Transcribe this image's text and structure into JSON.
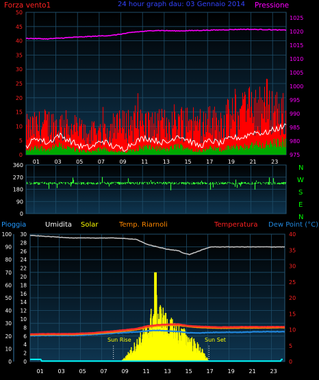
{
  "header": {
    "left_label": "Forza vento1",
    "center_title": "24 hour graph dau: 03 Gennaio 2014",
    "right_label": "Pressione"
  },
  "panel3_header": {
    "rain": "Pioggia",
    "humidity": "Umidita",
    "solar": "Solar",
    "temp_riarnoli": "Temp. Riarnoli",
    "temperature": "Temperatura",
    "dew_point": "Dew Point (°C)"
  },
  "annotations": {
    "sun_rise": "Sun Rise",
    "sun_set": "Sun Set",
    "direction_letters": [
      "N",
      "W",
      "S",
      "E",
      "N"
    ]
  },
  "colors": {
    "background": "#000000",
    "panel_fill_top": "#000000",
    "panel_fill_bottom": "#0e3550",
    "grid": "#1e4e6a",
    "wind": "#ff0000",
    "gust_avg": "#ffffff",
    "wind_green": "#00aa00",
    "pressure": "#ff00ff",
    "direction": "#33ff33",
    "direction_letters": "#00ff00",
    "humidity": "#c0c0c0",
    "solar": "#ffff00",
    "temperature": "#ff2a2a",
    "temp_riarnoli": "#ff8800",
    "dew_point": "#2288dd",
    "rain": "#00ffff",
    "left_axis_text": "#ffffff",
    "left_axis_text_top": "#ff2222",
    "right_axis_text_top": "#ff00ff",
    "right_axis_text_bottom": "#ff2222"
  },
  "chart_data": [
    {
      "type": "line",
      "name_ref": "wind-pressure",
      "x_ticks": [
        "01",
        "03",
        "05",
        "07",
        "09",
        "11",
        "13",
        "15",
        "17",
        "19",
        "21",
        "23"
      ],
      "y_left_ticks": [
        0,
        5,
        10,
        15,
        20,
        25,
        30,
        35,
        40,
        45,
        50
      ],
      "y_right_ticks": [
        975,
        980,
        985,
        990,
        995,
        1000,
        1005,
        1010,
        1015,
        1020,
        1025
      ],
      "ylim_left": [
        0,
        50
      ],
      "ylim_right": [
        975,
        1027
      ],
      "series": [
        {
          "key": "pressure",
          "points": [
            [
              0,
              1017.5
            ],
            [
              2,
              1017.3
            ],
            [
              4,
              1017.8
            ],
            [
              6,
              1018.2
            ],
            [
              8,
              1018.6
            ],
            [
              10,
              1019.8
            ],
            [
              12,
              1020.4
            ],
            [
              14,
              1020.2
            ],
            [
              16,
              1020.4
            ],
            [
              18,
              1020.6
            ],
            [
              20,
              1020.8
            ],
            [
              22,
              1020.7
            ],
            [
              23.8,
              1020.5
            ]
          ]
        },
        {
          "key": "wind",
          "profile": [
            [
              0,
              11
            ],
            [
              2,
              13
            ],
            [
              4,
              12
            ],
            [
              6,
              9
            ],
            [
              8,
              11
            ],
            [
              10,
              14
            ],
            [
              12,
              12
            ],
            [
              14,
              15
            ],
            [
              16,
              13
            ],
            [
              18,
              14
            ],
            [
              20,
              18
            ],
            [
              22,
              22
            ],
            [
              23.8,
              17
            ]
          ]
        },
        {
          "key": "gust_avg",
          "points": [
            [
              0,
              3
            ],
            [
              1,
              6
            ],
            [
              2,
              4
            ],
            [
              3,
              7
            ],
            [
              4,
              5
            ],
            [
              5,
              3
            ],
            [
              6,
              2.5
            ],
            [
              7,
              5
            ],
            [
              8,
              3
            ],
            [
              9,
              2
            ],
            [
              10,
              4.5
            ],
            [
              11,
              6
            ],
            [
              12,
              5
            ],
            [
              13,
              4
            ],
            [
              14,
              7
            ],
            [
              15,
              5
            ],
            [
              16,
              3
            ],
            [
              17,
              5
            ],
            [
              18,
              4
            ],
            [
              19,
              6
            ],
            [
              20,
              6
            ],
            [
              21,
              8
            ],
            [
              22,
              7.5
            ],
            [
              23,
              9
            ],
            [
              23.8,
              10
            ]
          ]
        }
      ]
    },
    {
      "type": "scatter",
      "name_ref": "wind-direction",
      "y_ticks": [
        0,
        90,
        180,
        270,
        360
      ],
      "ylim": [
        0,
        360
      ],
      "typical": 225,
      "spread": 20
    },
    {
      "type": "line",
      "name_ref": "temp-humidity-solar",
      "x_ticks": [
        "01",
        "03",
        "05",
        "07",
        "09",
        "11",
        "13",
        "15",
        "17",
        "19",
        "21",
        "23"
      ],
      "y_left_ticks": [
        0,
        10,
        20,
        30,
        40,
        50,
        60,
        70,
        80,
        90,
        100
      ],
      "y_rain_ticks": [
        0,
        2,
        4,
        6,
        8,
        10,
        12,
        14,
        16,
        18,
        20,
        22,
        24,
        26,
        28,
        30
      ],
      "y_right_ticks": [
        0,
        5,
        10,
        15,
        20,
        25,
        30,
        35,
        40
      ],
      "ylim_left": [
        0,
        100
      ],
      "ylim_rain": [
        0,
        30
      ],
      "ylim_right": [
        0,
        40
      ],
      "series": [
        {
          "key": "humidity",
          "points": [
            [
              0,
              99
            ],
            [
              2,
              98
            ],
            [
              4,
              97
            ],
            [
              6,
              97
            ],
            [
              8,
              97
            ],
            [
              10,
              96
            ],
            [
              11,
              92
            ],
            [
              12,
              90
            ],
            [
              13,
              88
            ],
            [
              14,
              87
            ],
            [
              14.5,
              85
            ],
            [
              15,
              84
            ],
            [
              16,
              87
            ],
            [
              17,
              90
            ],
            [
              18,
              90
            ],
            [
              20,
              90
            ],
            [
              22,
              90
            ],
            [
              23.8,
              90
            ]
          ]
        },
        {
          "key": "temperature",
          "points": [
            [
              0,
              8.6
            ],
            [
              2,
              8.7
            ],
            [
              4,
              8.7
            ],
            [
              6,
              9.0
            ],
            [
              8,
              9.6
            ],
            [
              10,
              10.3
            ],
            [
              11,
              11.1
            ],
            [
              12,
              11.5
            ],
            [
              13,
              11.7
            ],
            [
              14,
              11.7
            ],
            [
              15,
              11.2
            ],
            [
              16,
              11.0
            ],
            [
              18,
              10.8
            ],
            [
              20,
              10.9
            ],
            [
              22,
              10.9
            ],
            [
              23.8,
              10.9
            ]
          ]
        },
        {
          "key": "temp_riarnoli",
          "points": [
            [
              0,
              8.3
            ],
            [
              2,
              8.4
            ],
            [
              4,
              8.4
            ],
            [
              6,
              8.7
            ],
            [
              8,
              9.2
            ],
            [
              10,
              9.9
            ],
            [
              11,
              10.6
            ],
            [
              12,
              11.1
            ],
            [
              13,
              11.3
            ],
            [
              14,
              11.3
            ],
            [
              15,
              10.9
            ],
            [
              16,
              10.6
            ],
            [
              18,
              10.4
            ],
            [
              20,
              10.5
            ],
            [
              22,
              10.5
            ],
            [
              23.8,
              10.6
            ]
          ]
        },
        {
          "key": "dew_point",
          "points": [
            [
              0,
              8.1
            ],
            [
              2,
              8.2
            ],
            [
              4,
              8.2
            ],
            [
              6,
              8.5
            ],
            [
              8,
              8.9
            ],
            [
              10,
              9.3
            ],
            [
              11,
              9.6
            ],
            [
              12,
              9.8
            ],
            [
              13,
              9.6
            ],
            [
              14,
              9.4
            ],
            [
              15,
              9.0
            ],
            [
              16,
              9.0
            ],
            [
              18,
              9.2
            ],
            [
              20,
              9.2
            ],
            [
              22,
              9.4
            ],
            [
              23.8,
              9.4
            ]
          ]
        },
        {
          "key": "solar",
          "profile": [
            [
              8.5,
              0
            ],
            [
              9,
              1
            ],
            [
              10,
              4
            ],
            [
              11,
              7
            ],
            [
              11.8,
              12
            ],
            [
              12.5,
              10
            ],
            [
              13,
              8
            ],
            [
              14,
              7
            ],
            [
              15,
              5
            ],
            [
              16,
              3
            ],
            [
              16.6,
              1
            ],
            [
              16.9,
              0
            ]
          ]
        },
        {
          "key": "rain",
          "points": [
            [
              0,
              0.5
            ],
            [
              1,
              0.5
            ],
            [
              1.1,
              0.1
            ],
            [
              23.6,
              0.1
            ],
            [
              23.7,
              0.5
            ],
            [
              23.8,
              0.5
            ]
          ]
        }
      ],
      "sun_rise_hour": 7.85,
      "sun_set_hour": 16.85
    }
  ]
}
